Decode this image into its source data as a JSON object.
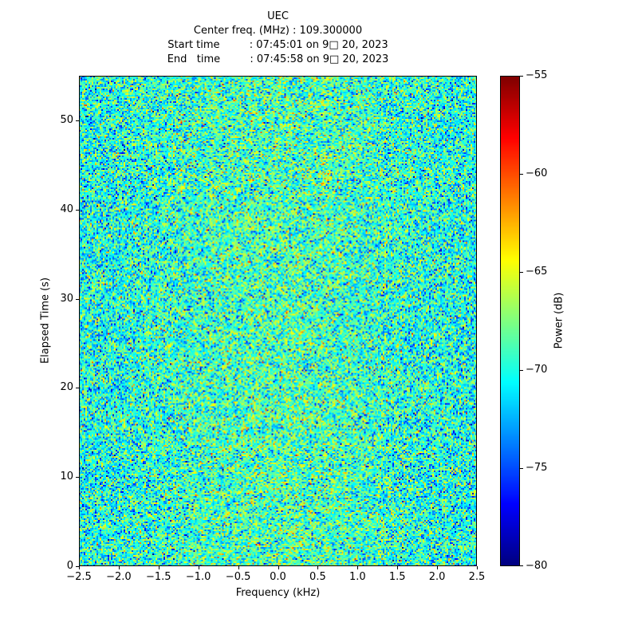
{
  "chart_data": {
    "type": "heatmap",
    "title": "UEC",
    "header_lines": [
      "Center freq. (MHz) : 109.300000",
      "Start time         : 07:45:01 on 9□ 20, 2023",
      "End   time         : 07:45:58 on 9□ 20, 2023"
    ],
    "xlabel": "Frequency (kHz)",
    "ylabel": "Elapsed Time (s)",
    "xlim": [
      -2.5,
      2.5
    ],
    "ylim": [
      0,
      55
    ],
    "xticks": [
      -2.5,
      -2.0,
      -1.5,
      -1.0,
      -0.5,
      0.0,
      0.5,
      1.0,
      1.5,
      2.0,
      2.5
    ],
    "xtick_labels": [
      "−2.5",
      "−2.0",
      "−1.5",
      "−1.0",
      "−0.5",
      "0.0",
      "0.5",
      "1.0",
      "1.5",
      "2.0",
      "2.5"
    ],
    "yticks": [
      0,
      10,
      20,
      30,
      40,
      50
    ],
    "ytick_labels": [
      "0",
      "10",
      "20",
      "30",
      "40",
      "50"
    ],
    "colorbar": {
      "label": "Power (dB)",
      "min": -80,
      "max": -55,
      "ticks": [
        -55,
        -60,
        -65,
        -70,
        -75,
        -80
      ],
      "tick_labels": [
        "−55",
        "−60",
        "−65",
        "−70",
        "−75",
        "−80"
      ],
      "colormap": "jet"
    },
    "noise": {
      "description": "broadband random noise floor, no visible carrier",
      "mean_db": -69.5,
      "std_db": 3.0,
      "center_boost_db": 1.5,
      "seed": 42,
      "cols": 250,
      "rows": 307
    }
  }
}
